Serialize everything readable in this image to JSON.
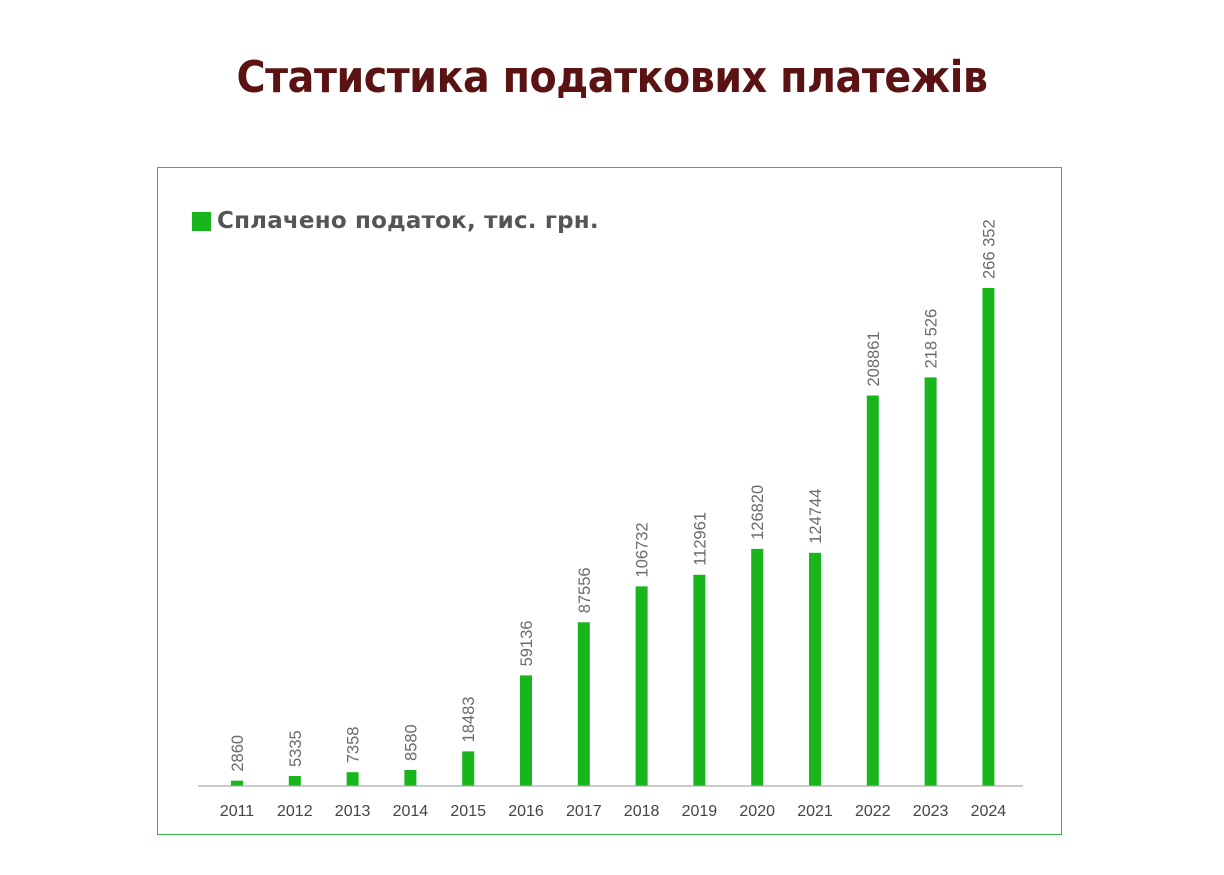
{
  "title": "Статистика податкових платежів",
  "colors": {
    "title": "#5a1212",
    "bar": "#18b51c",
    "frame": "#3cb44b",
    "axis": "#aaaaaa"
  },
  "chart_data": {
    "type": "bar",
    "title": "Статистика податкових платежів",
    "legend_position": "top-left",
    "grid": false,
    "categories": [
      "2011",
      "2012",
      "2013",
      "2014",
      "2015",
      "2016",
      "2017",
      "2018",
      "2019",
      "2020",
      "2021",
      "2022",
      "2023",
      "2024"
    ],
    "series": [
      {
        "name": "Сплачено податок, тис. грн.",
        "values": [
          2860,
          5335,
          7358,
          8580,
          18483,
          59136,
          87556,
          106732,
          112961,
          126820,
          124744,
          208861,
          218526,
          266352
        ]
      }
    ],
    "data_labels": [
      "2860",
      "5335",
      "7358",
      "8580",
      "18483",
      "59136",
      "87556",
      "106732",
      "112961",
      "126820",
      "124744",
      "208861",
      "218 526",
      "266 352"
    ],
    "ylim": [
      0,
      266352
    ]
  }
}
